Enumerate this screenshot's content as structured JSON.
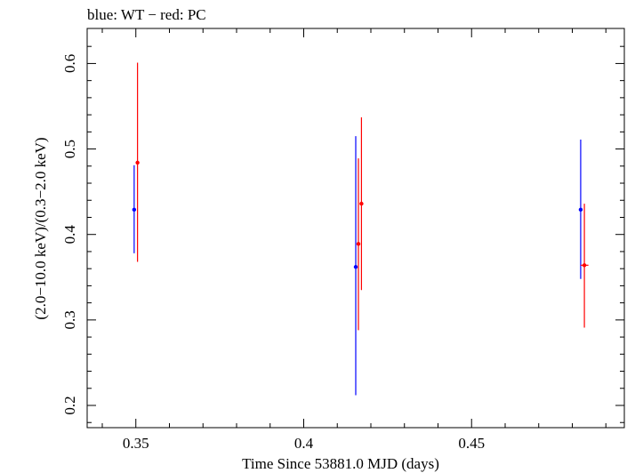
{
  "chart_data": {
    "type": "scatter",
    "title": "blue: WT − red: PC",
    "xlabel": "Time Since 53881.0 MJD (days)",
    "ylabel": "(2.0−10.0 keV)/(0.3−2.0 keV)",
    "xlim": [
      0.3355,
      0.4955
    ],
    "ylim": [
      0.174,
      0.641
    ],
    "x_ticks": [
      0.35,
      0.4,
      0.45
    ],
    "x_tick_labels": [
      "0.35",
      "0.4",
      "0.45"
    ],
    "y_ticks": [
      0.2,
      0.3,
      0.4,
      0.5,
      0.6
    ],
    "y_tick_labels": [
      "0.2",
      "0.3",
      "0.4",
      "0.5",
      "0.6"
    ],
    "grid": false,
    "series": [
      {
        "color": "#0000ff",
        "points": [
          {
            "x": 0.3495,
            "y": 0.429,
            "ylow": 0.378,
            "yhigh": 0.481
          },
          {
            "x": 0.4155,
            "y": 0.362,
            "ylow": 0.212,
            "yhigh": 0.515
          },
          {
            "x": 0.4825,
            "y": 0.429,
            "ylow": 0.348,
            "yhigh": 0.511
          }
        ]
      },
      {
        "color": "#ff0000",
        "points": [
          {
            "x": 0.3505,
            "y": 0.484,
            "ylow": 0.368,
            "yhigh": 0.601
          },
          {
            "x": 0.4163,
            "y": 0.389,
            "ylow": 0.288,
            "yhigh": 0.489
          },
          {
            "x": 0.4172,
            "y": 0.436,
            "ylow": 0.335,
            "yhigh": 0.537
          },
          {
            "x": 0.4836,
            "y": 0.364,
            "ylow": 0.291,
            "yhigh": 0.436,
            "xlow": 0.4825,
            "xhigh": 0.4848
          }
        ]
      }
    ]
  }
}
